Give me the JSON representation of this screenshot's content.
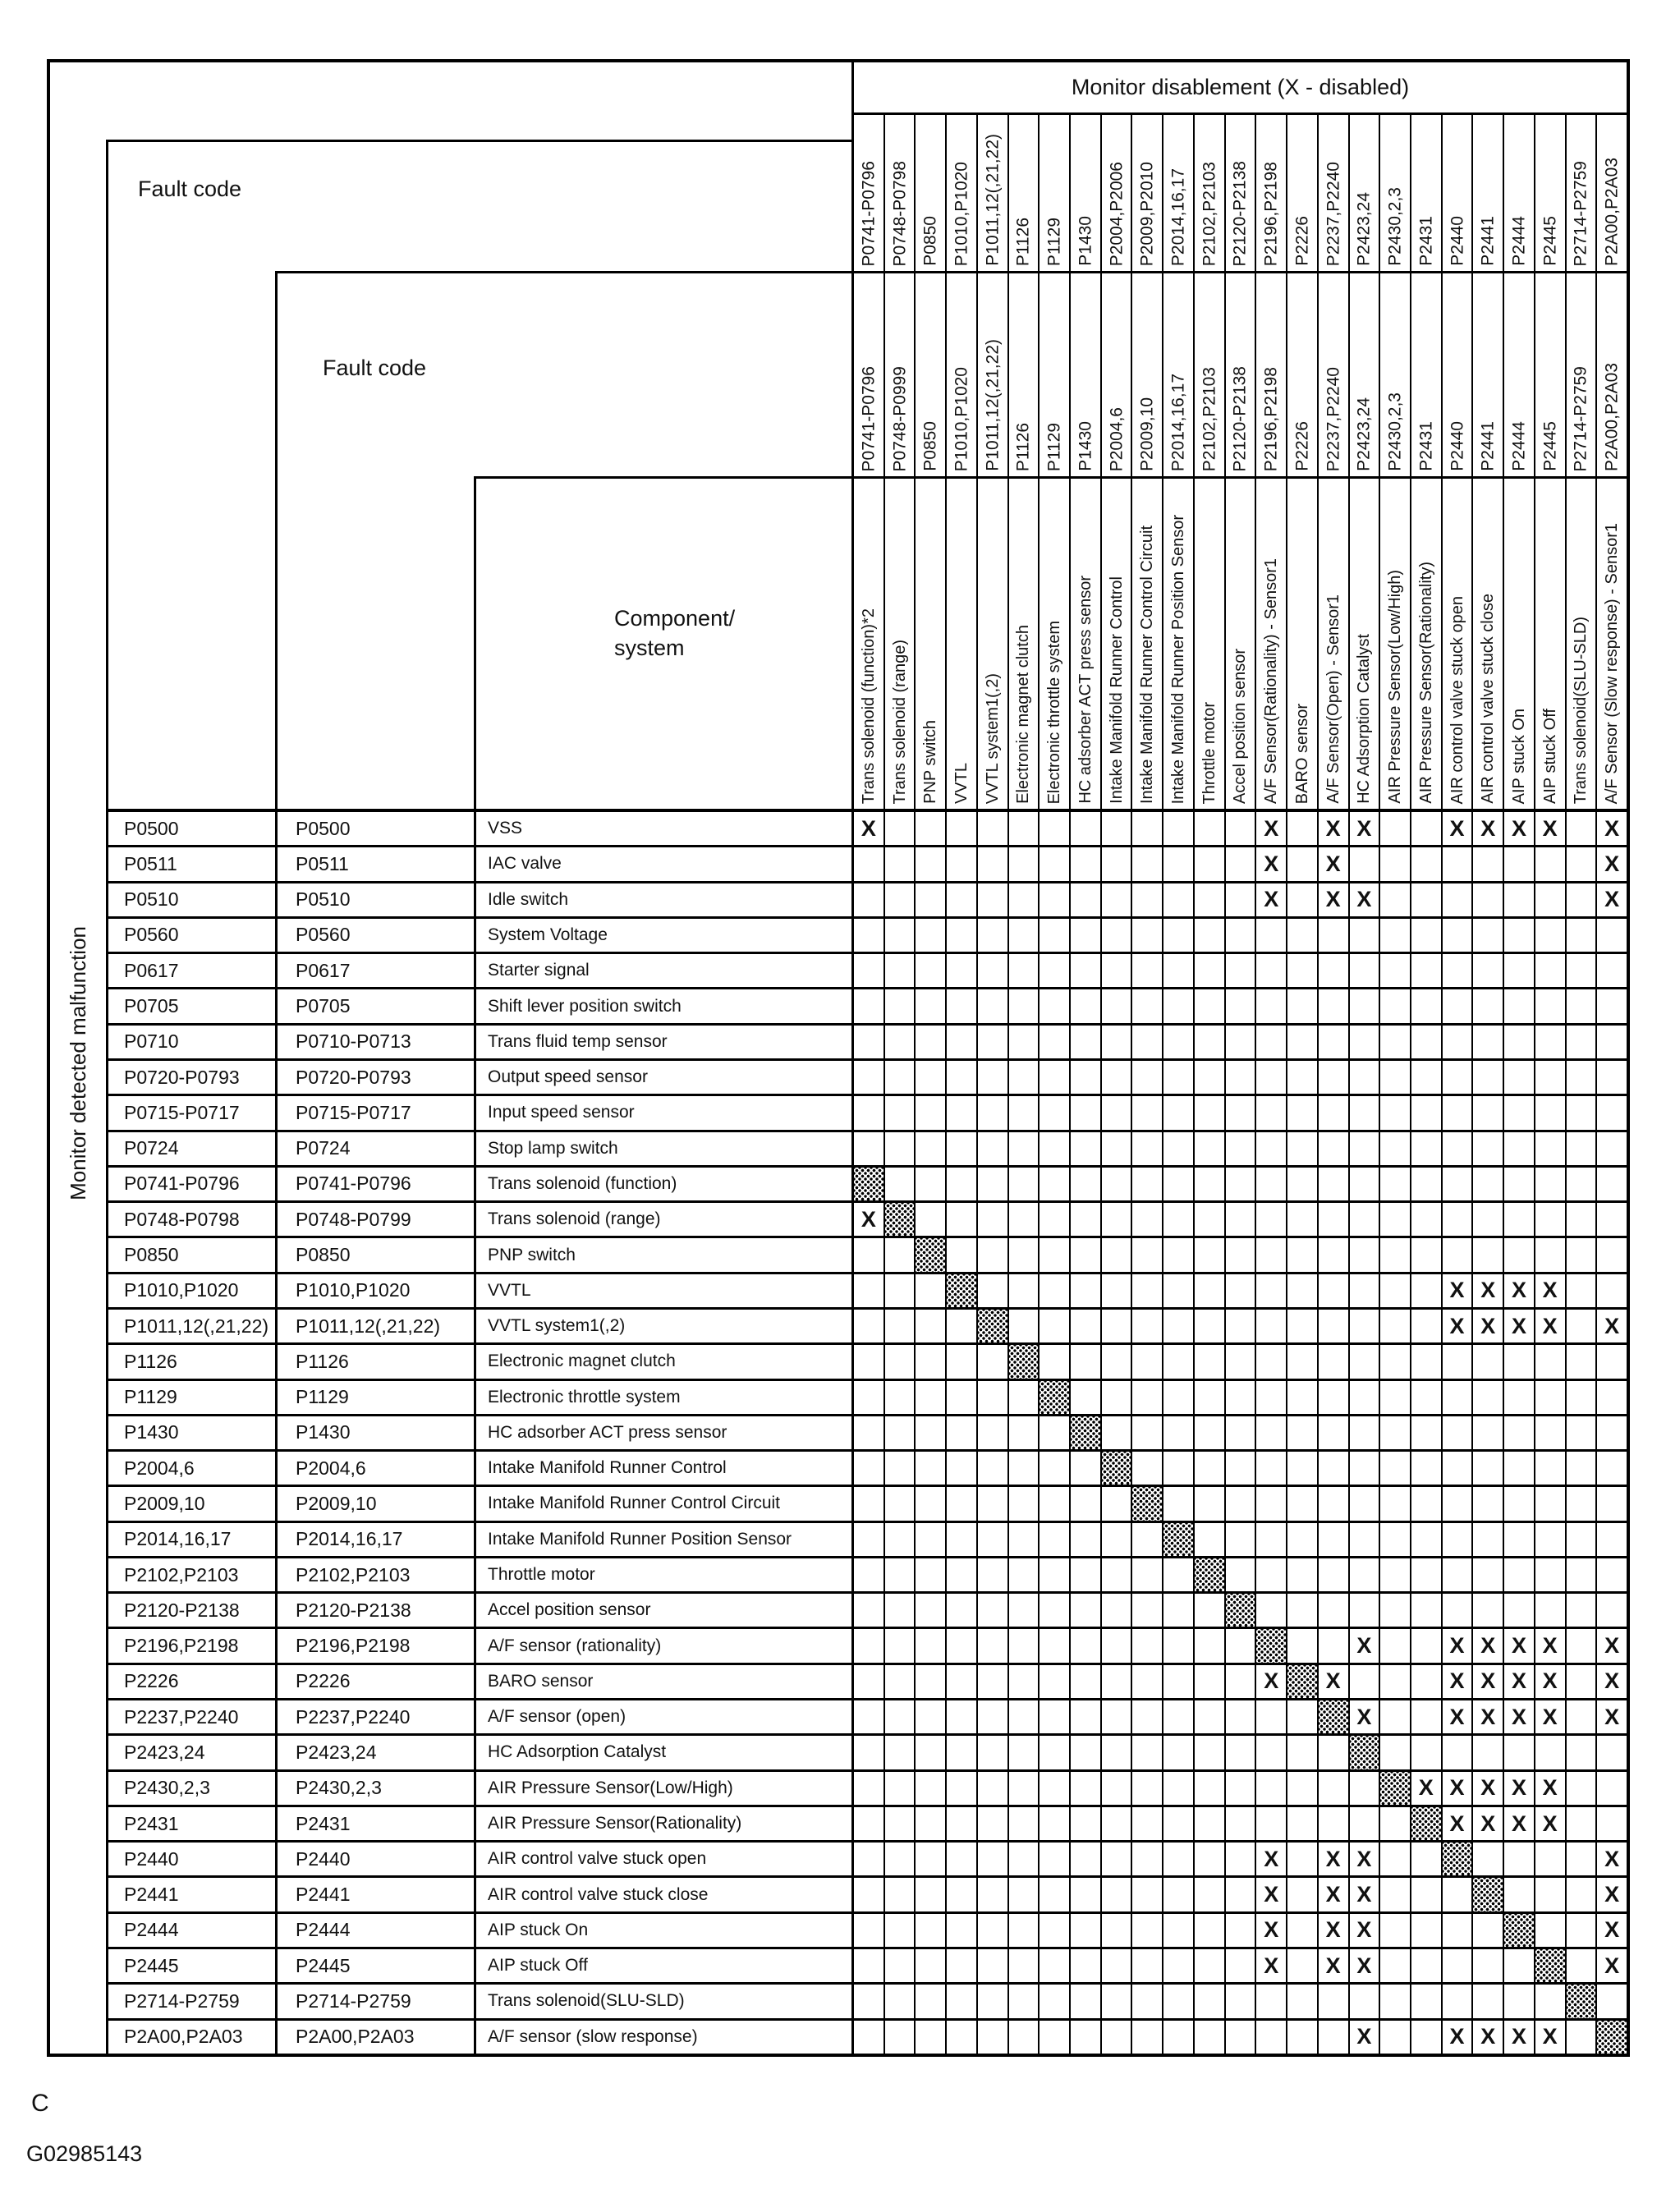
{
  "page": {
    "note_letter": "C",
    "figure_id": "G02985143"
  },
  "table": {
    "title": "Monitor disablement (X - disabled)",
    "row_axis_label": "Monitor detected malfunction",
    "fault_code_header_1": "Fault code",
    "fault_code_header_2": "Fault code",
    "component_header_line1": "Component/",
    "component_header_line2": "system",
    "disabled_mark_glyph": "X",
    "columns": [
      {
        "code_row1": "P0741-P0796",
        "code_row2": "P0741-P0796",
        "component": "Trans solenoid (function)*2"
      },
      {
        "code_row1": "P0748-P0798",
        "code_row2": "P0748-P0999",
        "component": "Trans solenoid (range)"
      },
      {
        "code_row1": "P0850",
        "code_row2": "P0850",
        "component": "PNP switch"
      },
      {
        "code_row1": "P1010,P1020",
        "code_row2": "P1010,P1020",
        "component": "VVTL"
      },
      {
        "code_row1": "P1011,12(,21,22)",
        "code_row2": "P1011,12(,21,22)",
        "component": "VVTL system1(,2)"
      },
      {
        "code_row1": "P1126",
        "code_row2": "P1126",
        "component": "Electronic magnet clutch"
      },
      {
        "code_row1": "P1129",
        "code_row2": "P1129",
        "component": "Electronic throttle system"
      },
      {
        "code_row1": "P1430",
        "code_row2": "P1430",
        "component": "HC adsorber ACT press sensor"
      },
      {
        "code_row1": "P2004,P2006",
        "code_row2": "P2004,6",
        "component": "Intake Manifold Runner Control"
      },
      {
        "code_row1": "P2009,P2010",
        "code_row2": "P2009,10",
        "component": "Intake Manifold Runner Control Circuit"
      },
      {
        "code_row1": "P2014,16,17",
        "code_row2": "P2014,16,17",
        "component": "Intake Manifold Runner Position Sensor"
      },
      {
        "code_row1": "P2102,P2103",
        "code_row2": "P2102,P2103",
        "component": "Throttle motor"
      },
      {
        "code_row1": "P2120-P2138",
        "code_row2": "P2120-P2138",
        "component": "Accel position sensor"
      },
      {
        "code_row1": "P2196,P2198",
        "code_row2": "P2196,P2198",
        "component": "A/F Sensor(Rationality) - Sensor1"
      },
      {
        "code_row1": "P2226",
        "code_row2": "P2226",
        "component": "BARO sensor"
      },
      {
        "code_row1": "P2237,P2240",
        "code_row2": "P2237,P2240",
        "component": "A/F Sensor(Open) - Sensor1"
      },
      {
        "code_row1": "P2423,24",
        "code_row2": "P2423,24",
        "component": "HC Adsorption Catalyst"
      },
      {
        "code_row1": "P2430,2,3",
        "code_row2": "P2430,2,3",
        "component": "AIR Pressure Sensor(Low/High)"
      },
      {
        "code_row1": "P2431",
        "code_row2": "P2431",
        "component": "AIR Pressure Sensor(Rationality)"
      },
      {
        "code_row1": "P2440",
        "code_row2": "P2440",
        "component": "AIR control valve stuck open"
      },
      {
        "code_row1": "P2441",
        "code_row2": "P2441",
        "component": "AIR control valve stuck close"
      },
      {
        "code_row1": "P2444",
        "code_row2": "P2444",
        "component": "AIP stuck On"
      },
      {
        "code_row1": "P2445",
        "code_row2": "P2445",
        "component": "AIP stuck Off"
      },
      {
        "code_row1": "P2714-P2759",
        "code_row2": "P2714-P2759",
        "component": "Trans solenoid(SLU-SLD)"
      },
      {
        "code_row1": "P2A00,P2A03",
        "code_row2": "P2A00,P2A03",
        "component": "A/F Sensor (Slow response) - Sensor1"
      }
    ],
    "rows": [
      {
        "fault_code_1": "P0500",
        "fault_code_2": "P0500",
        "component": "VSS",
        "marks": {
          "1": "X",
          "14": "X",
          "16": "X",
          "17": "X",
          "20": "X",
          "21": "X",
          "22": "X",
          "23": "X",
          "25": "X"
        }
      },
      {
        "fault_code_1": "P0511",
        "fault_code_2": "P0511",
        "component": "IAC valve",
        "marks": {
          "14": "X",
          "16": "X",
          "25": "X"
        }
      },
      {
        "fault_code_1": "P0510",
        "fault_code_2": "P0510",
        "component": "Idle switch",
        "marks": {
          "14": "X",
          "16": "X",
          "17": "X",
          "25": "X"
        }
      },
      {
        "fault_code_1": "P0560",
        "fault_code_2": "P0560",
        "component": "System Voltage",
        "marks": {}
      },
      {
        "fault_code_1": "P0617",
        "fault_code_2": "P0617",
        "component": "Starter signal",
        "marks": {}
      },
      {
        "fault_code_1": "P0705",
        "fault_code_2": "P0705",
        "component": "Shift lever position switch",
        "marks": {}
      },
      {
        "fault_code_1": "P0710",
        "fault_code_2": "P0710-P0713",
        "component": "Trans fluid temp sensor",
        "marks": {}
      },
      {
        "fault_code_1": "P0720-P0793",
        "fault_code_2": "P0720-P0793",
        "component": "Output speed sensor",
        "marks": {}
      },
      {
        "fault_code_1": "P0715-P0717",
        "fault_code_2": "P0715-P0717",
        "component": "Input speed sensor",
        "marks": {}
      },
      {
        "fault_code_1": "P0724",
        "fault_code_2": "P0724",
        "component": "Stop lamp switch",
        "marks": {}
      },
      {
        "fault_code_1": "P0741-P0796",
        "fault_code_2": "P0741-P0796",
        "component": "Trans solenoid (function)",
        "marks": {
          "1": "self"
        }
      },
      {
        "fault_code_1": "P0748-P0798",
        "fault_code_2": "P0748-P0799",
        "component": "Trans solenoid (range)",
        "marks": {
          "1": "X",
          "2": "self"
        }
      },
      {
        "fault_code_1": "P0850",
        "fault_code_2": "P0850",
        "component": "PNP switch",
        "marks": {
          "3": "self"
        }
      },
      {
        "fault_code_1": "P1010,P1020",
        "fault_code_2": "P1010,P1020",
        "component": "VVTL",
        "marks": {
          "4": "self",
          "20": "X",
          "21": "X",
          "22": "X",
          "23": "X"
        }
      },
      {
        "fault_code_1": "P1011,12(,21,22)",
        "fault_code_2": "P1011,12(,21,22)",
        "component": "VVTL system1(,2)",
        "marks": {
          "5": "self",
          "20": "X",
          "21": "X",
          "22": "X",
          "23": "X",
          "25": "X"
        }
      },
      {
        "fault_code_1": "P1126",
        "fault_code_2": "P1126",
        "component": "Electronic magnet clutch",
        "marks": {
          "6": "self"
        }
      },
      {
        "fault_code_1": "P1129",
        "fault_code_2": "P1129",
        "component": "Electronic throttle system",
        "marks": {
          "7": "self"
        }
      },
      {
        "fault_code_1": "P1430",
        "fault_code_2": "P1430",
        "component": "HC adsorber ACT press sensor",
        "marks": {
          "8": "self"
        }
      },
      {
        "fault_code_1": "P2004,6",
        "fault_code_2": "P2004,6",
        "component": "Intake Manifold Runner Control",
        "marks": {
          "9": "self"
        }
      },
      {
        "fault_code_1": "P2009,10",
        "fault_code_2": "P2009,10",
        "component": "Intake Manifold Runner Control Circuit",
        "marks": {
          "10": "self"
        }
      },
      {
        "fault_code_1": "P2014,16,17",
        "fault_code_2": "P2014,16,17",
        "component": "Intake Manifold Runner Position Sensor",
        "marks": {
          "11": "self"
        }
      },
      {
        "fault_code_1": "P2102,P2103",
        "fault_code_2": "P2102,P2103",
        "component": "Throttle motor",
        "marks": {
          "12": "self"
        }
      },
      {
        "fault_code_1": "P2120-P2138",
        "fault_code_2": "P2120-P2138",
        "component": "Accel position sensor",
        "marks": {
          "13": "self"
        }
      },
      {
        "fault_code_1": "P2196,P2198",
        "fault_code_2": "P2196,P2198",
        "component": "A/F sensor (rationality)",
        "marks": {
          "14": "self",
          "17": "X",
          "20": "X",
          "21": "X",
          "22": "X",
          "23": "X",
          "25": "X"
        }
      },
      {
        "fault_code_1": "P2226",
        "fault_code_2": "P2226",
        "component": "BARO sensor",
        "marks": {
          "14": "X",
          "15": "self",
          "16": "X",
          "20": "X",
          "21": "X",
          "22": "X",
          "23": "X",
          "25": "X"
        }
      },
      {
        "fault_code_1": "P2237,P2240",
        "fault_code_2": "P2237,P2240",
        "component": "A/F sensor (open)",
        "marks": {
          "16": "self",
          "17": "X",
          "20": "X",
          "21": "X",
          "22": "X",
          "23": "X",
          "25": "X"
        }
      },
      {
        "fault_code_1": "P2423,24",
        "fault_code_2": "P2423,24",
        "component": "HC Adsorption Catalyst",
        "marks": {
          "17": "self"
        }
      },
      {
        "fault_code_1": "P2430,2,3",
        "fault_code_2": "P2430,2,3",
        "component": "AIR Pressure Sensor(Low/High)",
        "marks": {
          "18": "self",
          "19": "X",
          "20": "X",
          "21": "X",
          "22": "X",
          "23": "X"
        }
      },
      {
        "fault_code_1": "P2431",
        "fault_code_2": "P2431",
        "component": "AIR Pressure Sensor(Rationality)",
        "marks": {
          "19": "self",
          "20": "X",
          "21": "X",
          "22": "X",
          "23": "X"
        }
      },
      {
        "fault_code_1": "P2440",
        "fault_code_2": "P2440",
        "component": "AIR control valve stuck open",
        "marks": {
          "14": "X",
          "16": "X",
          "17": "X",
          "20": "self",
          "25": "X"
        }
      },
      {
        "fault_code_1": "P2441",
        "fault_code_2": "P2441",
        "component": "AIR control valve stuck close",
        "marks": {
          "14": "X",
          "16": "X",
          "17": "X",
          "21": "self",
          "25": "X"
        }
      },
      {
        "fault_code_1": "P2444",
        "fault_code_2": "P2444",
        "component": "AIP stuck On",
        "marks": {
          "14": "X",
          "16": "X",
          "17": "X",
          "22": "self",
          "25": "X"
        }
      },
      {
        "fault_code_1": "P2445",
        "fault_code_2": "P2445",
        "component": "AIP stuck Off",
        "marks": {
          "14": "X",
          "16": "X",
          "17": "X",
          "23": "self",
          "25": "X"
        }
      },
      {
        "fault_code_1": "P2714-P2759",
        "fault_code_2": "P2714-P2759",
        "component": "Trans solenoid(SLU-SLD)",
        "marks": {
          "24": "self"
        }
      },
      {
        "fault_code_1": "P2A00,P2A03",
        "fault_code_2": "P2A00,P2A03",
        "component": "A/F sensor (slow response)",
        "marks": {
          "17": "X",
          "20": "X",
          "21": "X",
          "22": "X",
          "23": "X",
          "25": "self"
        }
      }
    ]
  }
}
